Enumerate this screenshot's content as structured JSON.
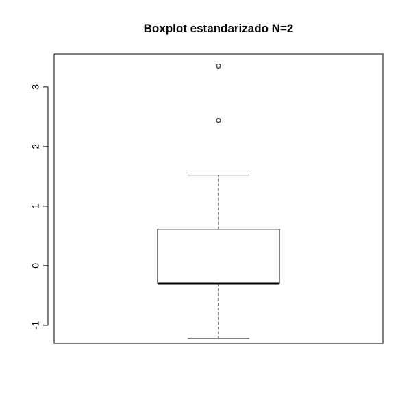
{
  "chart_data": {
    "type": "boxplot",
    "title": "Boxplot estandarizado N=2",
    "xlabel": "",
    "ylabel": "",
    "ylim": [
      -1.3,
      3.55
    ],
    "y_ticks": [
      -1,
      0,
      1,
      2,
      3
    ],
    "y_tick_labels": [
      "-1",
      "0",
      "1",
      "2",
      "3"
    ],
    "grid": false,
    "series": [
      {
        "name": "",
        "whisker_low": -1.22,
        "q1": -0.3,
        "median": -0.3,
        "q3": 0.61,
        "whisker_high": 1.52,
        "outliers": [
          2.44,
          3.35
        ]
      }
    ]
  }
}
